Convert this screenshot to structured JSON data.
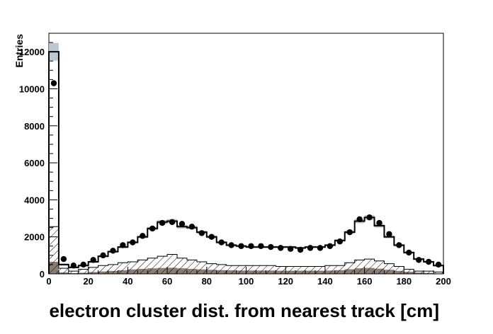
{
  "chart_data": {
    "type": "histogram",
    "xlabel": "electron cluster dist. from nearest track [cm]",
    "ylabel": "Entries",
    "xlim": [
      0,
      200
    ],
    "ylim": [
      0,
      13000
    ],
    "x_ticks": [
      "0",
      "20",
      "40",
      "60",
      "80",
      "100",
      "120",
      "140",
      "160",
      "180",
      "200"
    ],
    "y_ticks": [
      "0",
      "2000",
      "4000",
      "6000",
      "8000",
      "10000",
      "12000"
    ],
    "bin_width": 5,
    "bin_edges": [
      0,
      5,
      10,
      15,
      20,
      25,
      30,
      35,
      40,
      45,
      50,
      55,
      60,
      65,
      70,
      75,
      80,
      85,
      90,
      95,
      100,
      105,
      110,
      115,
      120,
      125,
      130,
      135,
      140,
      145,
      150,
      155,
      160,
      165,
      170,
      175,
      180,
      185,
      190,
      195,
      200
    ],
    "series": [
      {
        "style": "points",
        "color": "#000000",
        "values": [
          10300,
          800,
          450,
          500,
          750,
          1000,
          1250,
          1550,
          1700,
          2050,
          2450,
          2750,
          2800,
          2700,
          2550,
          2200,
          2000,
          1700,
          1550,
          1500,
          1500,
          1500,
          1450,
          1400,
          1350,
          1300,
          1400,
          1400,
          1500,
          1750,
          2250,
          2950,
          3050,
          2750,
          2150,
          1550,
          1150,
          750,
          650,
          500
        ]
      },
      {
        "style": "line",
        "color": "#000000",
        "values": [
          12000,
          500,
          350,
          450,
          650,
          950,
          1200,
          1450,
          1700,
          2000,
          2450,
          2800,
          2850,
          2550,
          2500,
          2250,
          2000,
          1700,
          1550,
          1500,
          1450,
          1450,
          1450,
          1450,
          1450,
          1400,
          1450,
          1450,
          1550,
          1800,
          2250,
          2850,
          3050,
          2600,
          2000,
          1550,
          1150,
          800,
          650,
          450
        ]
      },
      {
        "style": "hatched",
        "color": "#000000",
        "values": [
          2550,
          300,
          150,
          250,
          350,
          450,
          500,
          600,
          650,
          750,
          850,
          950,
          1050,
          850,
          750,
          650,
          550,
          500,
          450,
          450,
          450,
          450,
          450,
          400,
          400,
          400,
          400,
          400,
          450,
          450,
          600,
          750,
          800,
          700,
          550,
          400,
          250,
          150,
          150,
          100
        ]
      },
      {
        "style": "filled",
        "color": "#8c7b70",
        "values": [
          650,
          80,
          40,
          60,
          100,
          130,
          160,
          200,
          240,
          270,
          300,
          320,
          330,
          300,
          270,
          240,
          220,
          200,
          190,
          180,
          180,
          180,
          180,
          170,
          170,
          170,
          170,
          170,
          180,
          200,
          250,
          300,
          320,
          280,
          220,
          160,
          110,
          70,
          50,
          30
        ]
      }
    ],
    "uncertainty_color": "#aebfcc"
  }
}
